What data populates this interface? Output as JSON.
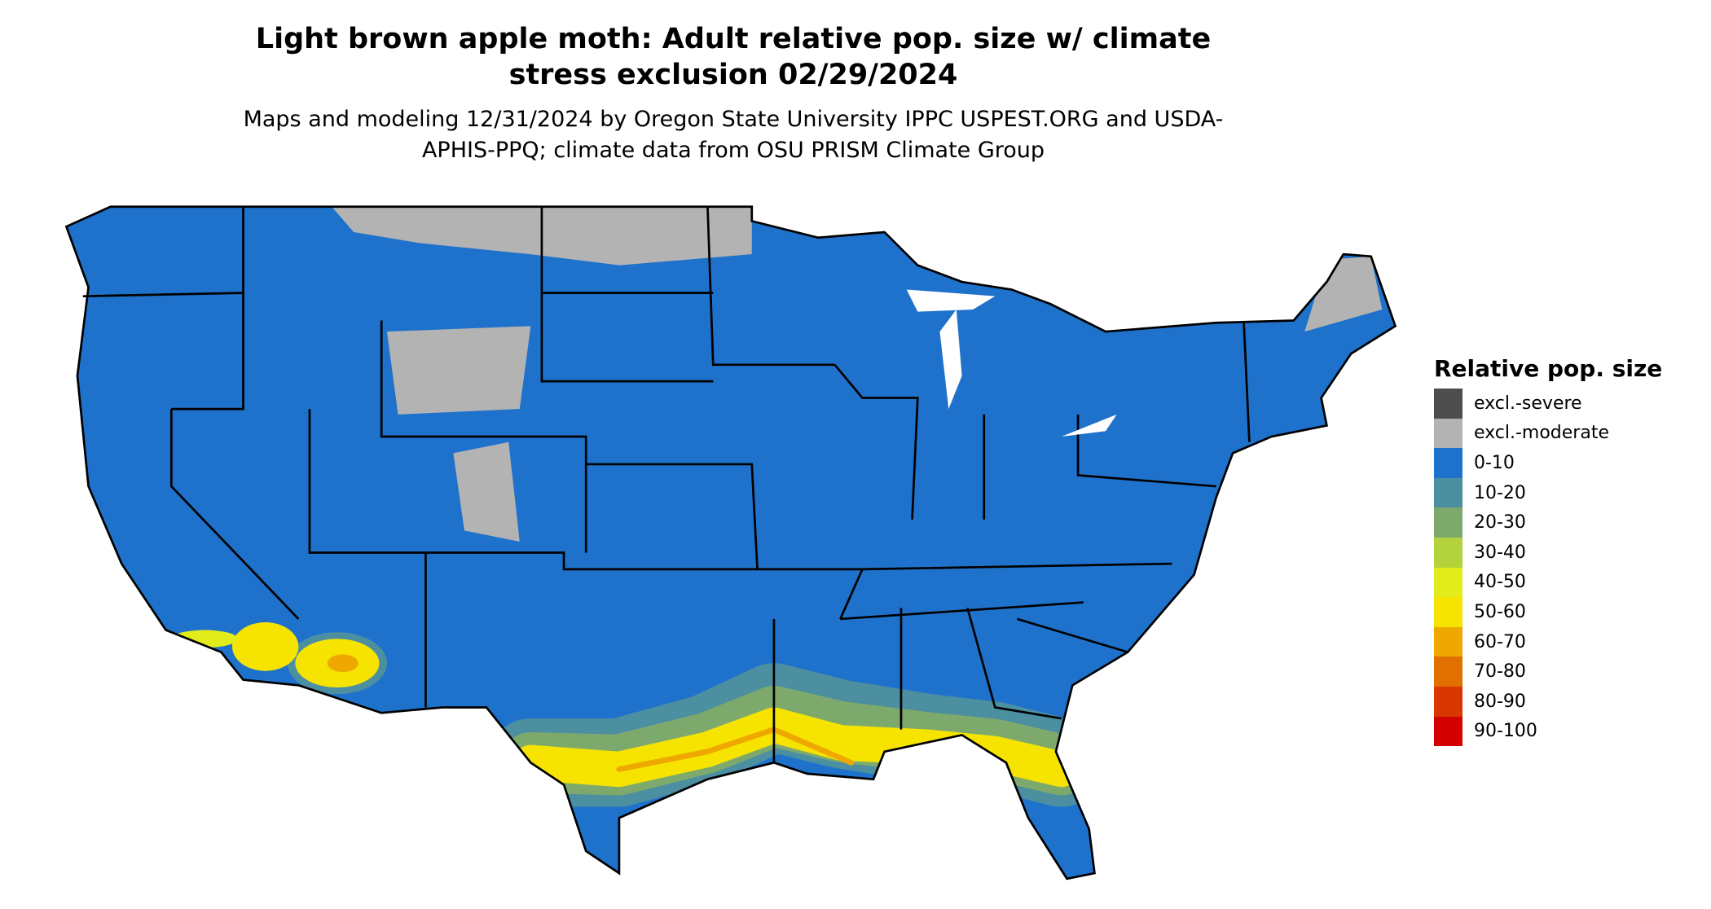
{
  "title": "Light brown apple moth: Adult relative pop. size w/ climate stress exclusion 02/29/2024",
  "subtitle": "Maps and modeling 12/31/2024 by Oregon State University IPPC USPEST.ORG and USDA-APHIS-PPQ; climate data from OSU PRISM Climate Group",
  "legend": {
    "title": "Relative pop. size",
    "items": [
      {
        "label": "excl.-severe",
        "color": "#4d4d4d"
      },
      {
        "label": "excl.-moderate",
        "color": "#b3b3b3"
      },
      {
        "label": "0-10",
        "color": "#1f72cc"
      },
      {
        "label": "10-20",
        "color": "#4b8fa0"
      },
      {
        "label": "20-30",
        "color": "#7daa6c"
      },
      {
        "label": "30-40",
        "color": "#b4d23c"
      },
      {
        "label": "40-50",
        "color": "#e2ec1a"
      },
      {
        "label": "50-60",
        "color": "#f6e400"
      },
      {
        "label": "60-70",
        "color": "#eea800"
      },
      {
        "label": "70-80",
        "color": "#e27000"
      },
      {
        "label": "80-90",
        "color": "#d83800"
      },
      {
        "label": "90-100",
        "color": "#d20000"
      }
    ]
  }
}
